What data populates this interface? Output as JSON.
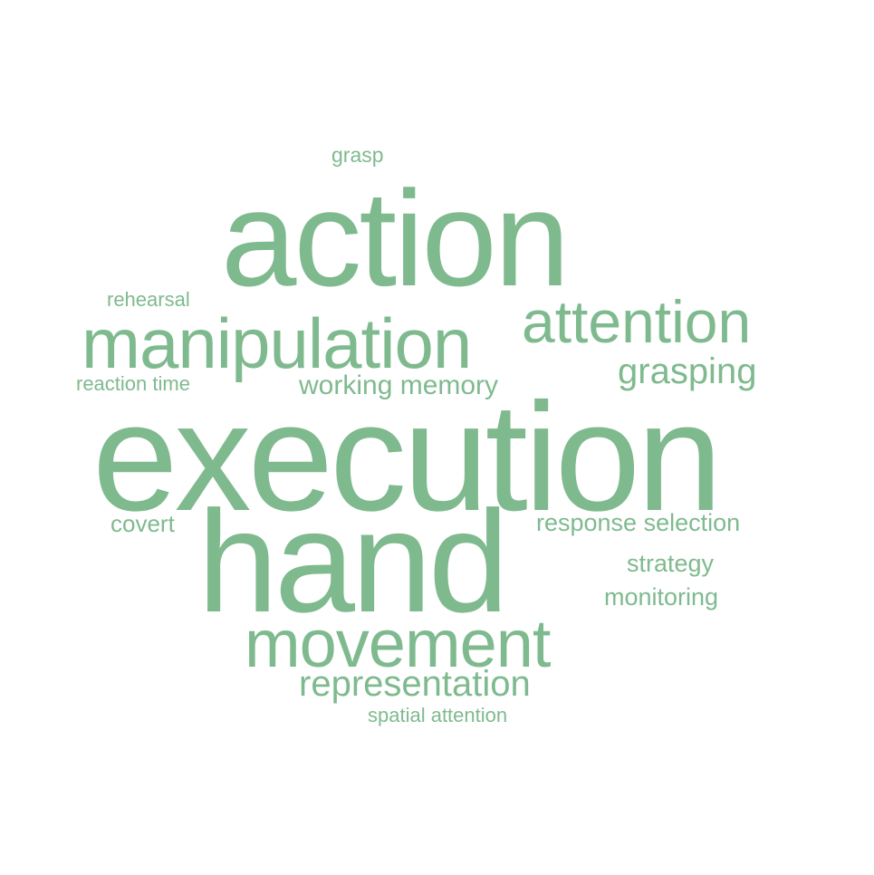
{
  "word_color": "#7fba8f",
  "background": "#ffffff",
  "words": {
    "grasp": "grasp",
    "action": "action",
    "rehearsal": "rehearsal",
    "attention": "attention",
    "manipulation": "manipulation",
    "grasping": "grasping",
    "reaction_time": "reaction time",
    "working_memory": "working memory",
    "execution": "execution",
    "covert": "covert",
    "response_selection": "response selection",
    "hand": "hand",
    "strategy": "strategy",
    "monitoring": "monitoring",
    "movement": "movement",
    "representation": "representation",
    "spatial_attention": "spatial attention"
  }
}
